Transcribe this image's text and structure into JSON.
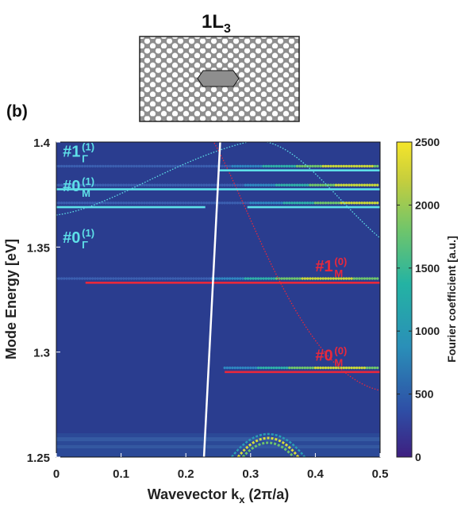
{
  "figure": {
    "title": "1L",
    "title_subscript": "3",
    "panel_label": "(b)"
  },
  "chart_data": {
    "type": "heatmap",
    "xlabel": "Wavevector k",
    "xlabel_subscript": "x",
    "xlabel_suffix": " (2π/a)",
    "ylabel": "Mode Energy [eV]",
    "xlim": [
      0,
      0.5
    ],
    "ylim": [
      1.25,
      1.4
    ],
    "x_ticks": [
      0,
      0.1,
      0.2,
      0.3,
      0.4,
      0.5
    ],
    "x_tick_labels": [
      "0",
      "0.1",
      "0.2",
      "0.3",
      "0.4",
      "0.5"
    ],
    "y_ticks": [
      1.25,
      1.3,
      1.35,
      1.4
    ],
    "y_tick_labels": [
      "1.25",
      "1.3",
      "1.35",
      "1.4"
    ],
    "colorbar": {
      "label": "Fourier coefficient [a.u.]",
      "range": [
        0,
        2500
      ],
      "ticks": [
        0,
        500,
        1000,
        1500,
        2000,
        2500
      ],
      "tick_labels": [
        "0",
        "500",
        "1000",
        "1500",
        "2000",
        "2500"
      ]
    },
    "colors": {
      "background": "#2a3d8f",
      "mode_line_upper": "#5ee0e8",
      "mode_line_lower": "#e8283c",
      "light_line": "#ffffff"
    },
    "mode_lines": [
      {
        "energy": 1.3865,
        "x_start": 0.25,
        "x_end": 0.5,
        "color": "#5ee0e8"
      },
      {
        "energy": 1.3775,
        "x_start": 0.0,
        "x_end": 0.5,
        "color": "#5ee0e8"
      },
      {
        "energy": 1.369,
        "x_start": 0.0,
        "x_end": 0.23,
        "color": "#5ee0e8"
      },
      {
        "energy": 1.369,
        "x_start": 0.295,
        "x_end": 0.5,
        "color": "#5ee0e8"
      },
      {
        "energy": 1.333,
        "x_start": 0.045,
        "x_end": 0.5,
        "color": "#e8283c"
      },
      {
        "energy": 1.2905,
        "x_start": 0.26,
        "x_end": 0.5,
        "color": "#e8283c"
      }
    ],
    "bright_rows": [
      {
        "energy": 1.3885,
        "x_start": 0.0,
        "x_end": 0.5,
        "peak_x": 0.45
      },
      {
        "energy": 1.3795,
        "x_start": 0.0,
        "x_end": 0.5,
        "peak_x": 0.47
      },
      {
        "energy": 1.371,
        "x_start": 0.0,
        "x_end": 0.5,
        "peak_x": 0.48
      },
      {
        "energy": 1.335,
        "x_start": 0.0,
        "x_end": 0.5,
        "peak_x": 0.42
      },
      {
        "energy": 1.2925,
        "x_start": 0.26,
        "x_end": 0.5,
        "peak_x": 0.44
      }
    ],
    "light_line": {
      "x": [
        0.228,
        0.253
      ],
      "y": [
        1.25,
        1.4
      ]
    },
    "annotations": [
      {
        "id": "m1g1",
        "text": "#1",
        "sub": "Γ",
        "sup": "(1)",
        "color": "#5ee0e8",
        "x": 0.01,
        "y": 1.393
      },
      {
        "id": "m0m1",
        "text": "#0",
        "sub": "M",
        "sup": "(1)",
        "color": "#5ee0e8",
        "x": 0.01,
        "y": 1.3765
      },
      {
        "id": "m0g1",
        "text": "#0",
        "sub": "Γ",
        "sup": "(1)",
        "color": "#5ee0e8",
        "x": 0.01,
        "y": 1.352
      },
      {
        "id": "m1m0",
        "text": "#1",
        "sub": "M",
        "sup": "(0)",
        "color": "#e8283c",
        "x": 0.4,
        "y": 1.3385
      },
      {
        "id": "m0m0",
        "text": "#0",
        "sub": "M",
        "sup": "(0)",
        "color": "#e8283c",
        "x": 0.4,
        "y": 1.296
      }
    ]
  }
}
